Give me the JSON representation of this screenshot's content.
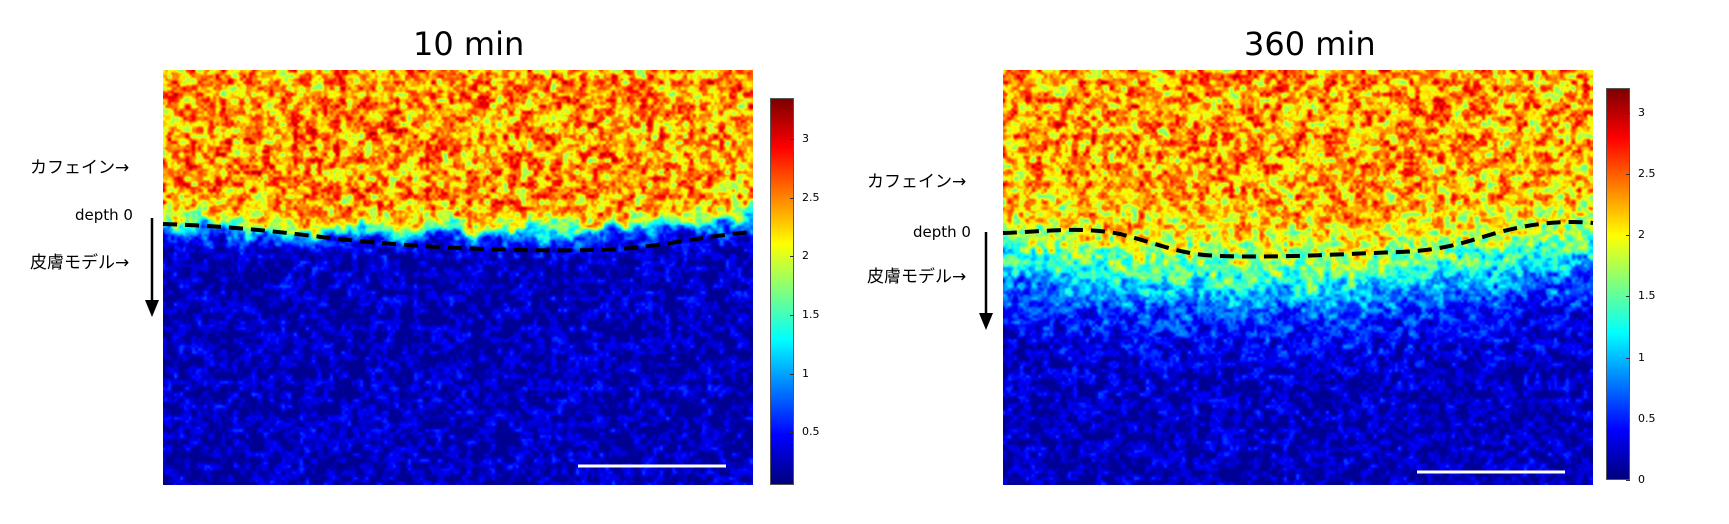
{
  "panels": [
    {
      "title": "10 min",
      "label_caffeine": "カフェイン→",
      "label_depth": "depth 0",
      "label_skin": "皮膚モデル→",
      "colorbar_ticks": [
        "3",
        "2.5",
        "2",
        "1.5",
        "1",
        "0.5"
      ],
      "colorbar_range": [
        0.05,
        3.35
      ]
    },
    {
      "title": "360 min",
      "label_caffeine": "カフェイン→",
      "label_depth": "depth 0",
      "label_skin": "皮膚モデル→",
      "colorbar_ticks": [
        "3",
        "2.5",
        "2",
        "1.5",
        "1",
        "0.5",
        "0"
      ],
      "colorbar_range": [
        0,
        3.2
      ]
    }
  ],
  "colormap": "jet"
}
